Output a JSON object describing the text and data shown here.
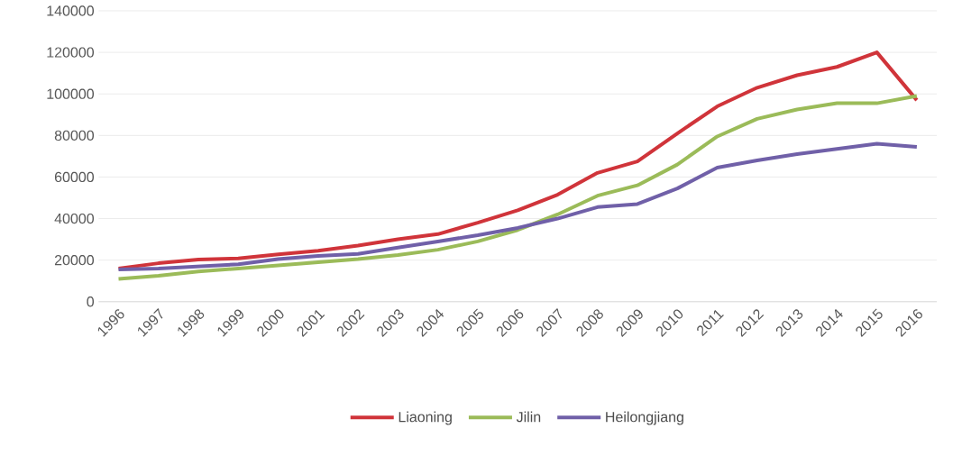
{
  "chart_data": {
    "type": "line",
    "categories": [
      "1996",
      "1997",
      "1998",
      "1999",
      "2000",
      "2001",
      "2002",
      "2003",
      "2004",
      "2005",
      "2006",
      "2007",
      "2008",
      "2009",
      "2010",
      "2011",
      "2012",
      "2013",
      "2014",
      "2015",
      "2016"
    ],
    "series": [
      {
        "name": "Liaoning",
        "color": "#d0343a",
        "values": [
          16000,
          18500,
          20300,
          20800,
          22800,
          24500,
          27000,
          30000,
          32500,
          38000,
          44000,
          51500,
          62000,
          67500,
          81000,
          94000,
          103000,
          109000,
          113000,
          120000,
          97000
        ]
      },
      {
        "name": "Jilin",
        "color": "#9bbb59",
        "values": [
          11000,
          12500,
          14500,
          16000,
          17500,
          19000,
          20500,
          22500,
          25000,
          29000,
          34500,
          42000,
          51000,
          56000,
          66000,
          79500,
          88000,
          92500,
          95500,
          95500,
          99000
        ]
      },
      {
        "name": "Heilongjiang",
        "color": "#7060a8",
        "values": [
          15500,
          16000,
          17000,
          18000,
          20500,
          22000,
          23000,
          26000,
          29000,
          32000,
          35500,
          40000,
          45500,
          47000,
          54500,
          64500,
          68000,
          71000,
          73500,
          76000,
          74500
        ]
      }
    ],
    "ylim": [
      0,
      140000
    ],
    "yticks": [
      0,
      20000,
      40000,
      60000,
      80000,
      100000,
      120000,
      140000
    ],
    "grid": "y",
    "legend": "bottom",
    "marker": "none",
    "line_style": "solid"
  }
}
